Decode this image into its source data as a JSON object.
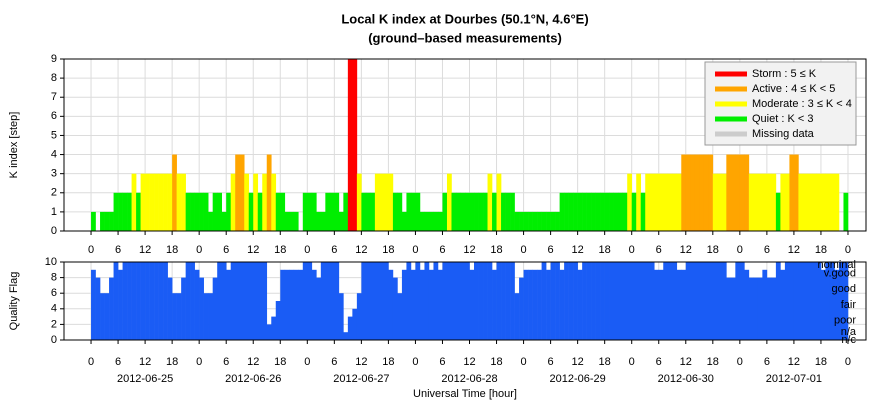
{
  "chart_data": [
    {
      "type": "bar",
      "title": "Local K index at Dourbes (50.1°N, 4.6°E)",
      "subtitle": "(ground–based measurements)",
      "ylabel": "K index [step]",
      "xlim": [
        -6,
        172
      ],
      "ylim": [
        0,
        9
      ],
      "yticks": [
        0,
        1,
        2,
        3,
        4,
        5,
        6,
        7,
        8,
        9
      ],
      "grid": true,
      "xticks": [
        {
          "value": 0,
          "label": "0"
        },
        {
          "value": 6,
          "label": "6"
        },
        {
          "value": 12,
          "label": "12"
        },
        {
          "value": 18,
          "label": "18"
        },
        {
          "value": 24,
          "label": "0"
        },
        {
          "value": 30,
          "label": "6"
        },
        {
          "value": 36,
          "label": "12"
        },
        {
          "value": 42,
          "label": "18"
        },
        {
          "value": 48,
          "label": "0"
        },
        {
          "value": 54,
          "label": "6"
        },
        {
          "value": 60,
          "label": "12"
        },
        {
          "value": 66,
          "label": "18"
        },
        {
          "value": 72,
          "label": "0"
        },
        {
          "value": 78,
          "label": "6"
        },
        {
          "value": 84,
          "label": "12"
        },
        {
          "value": 90,
          "label": "18"
        },
        {
          "value": 96,
          "label": "0"
        },
        {
          "value": 102,
          "label": "6"
        },
        {
          "value": 108,
          "label": "12"
        },
        {
          "value": 114,
          "label": "18"
        },
        {
          "value": 120,
          "label": "0"
        },
        {
          "value": 126,
          "label": "6"
        },
        {
          "value": 132,
          "label": "12"
        },
        {
          "value": 138,
          "label": "18"
        },
        {
          "value": 144,
          "label": "0"
        },
        {
          "value": 150,
          "label": "6"
        },
        {
          "value": 156,
          "label": "12"
        },
        {
          "value": 162,
          "label": "18"
        },
        {
          "value": 168,
          "label": "0"
        }
      ],
      "legend": "upper right",
      "levels": [
        {
          "name": "Storm : 5 ≤ K",
          "color": "#ff0000",
          "min": 5
        },
        {
          "name": "Active : 4 ≤ K < 5",
          "color": "#ffa500",
          "min": 4
        },
        {
          "name": "Moderate : 3 ≤ K < 4",
          "color": "#ffff00",
          "min": 3
        },
        {
          "name": "Quiet : K < 3",
          "color": "#00ee00",
          "min": 0
        },
        {
          "name": "Missing data",
          "color": "#cccccc"
        }
      ],
      "values": [
        1,
        0,
        1,
        1,
        1,
        2,
        2,
        2,
        2,
        3,
        2,
        3,
        3,
        3,
        3,
        3,
        3,
        3,
        4,
        3,
        3,
        2,
        2,
        2,
        2,
        2,
        1,
        2,
        2,
        1,
        2,
        3,
        4,
        4,
        3,
        2,
        3,
        2,
        3,
        4,
        3,
        2,
        2,
        1,
        1,
        1,
        0,
        2,
        2,
        2,
        1,
        1,
        2,
        2,
        2,
        1,
        2,
        9,
        9,
        3,
        2,
        2,
        2,
        3,
        3,
        3,
        3,
        2,
        2,
        1,
        2,
        2,
        2,
        1,
        1,
        1,
        1,
        1,
        2,
        3,
        2,
        2,
        2,
        2,
        2,
        2,
        2,
        2,
        3,
        2,
        3,
        2,
        2,
        2,
        1,
        1,
        1,
        1,
        1,
        1,
        1,
        1,
        1,
        1,
        2,
        2,
        2,
        2,
        2,
        2,
        2,
        2,
        2,
        2,
        2,
        2,
        2,
        2,
        2,
        3,
        2,
        3,
        2,
        3,
        3,
        3,
        3,
        3,
        3,
        3,
        3,
        4,
        4,
        4,
        4,
        4,
        4,
        4,
        3,
        3,
        3,
        4,
        4,
        4,
        4,
        4,
        3,
        3,
        3,
        3,
        3,
        3,
        2,
        3,
        3,
        4,
        4,
        3,
        3,
        3,
        3,
        3,
        3,
        3,
        3,
        3,
        0,
        2
      ]
    },
    {
      "type": "bar",
      "ylabel": "Quality Flag",
      "xlabel": "Universal Time [hour]",
      "color": "#1a5cf5",
      "xlim": [
        -6,
        172
      ],
      "ylim": [
        0,
        10
      ],
      "yticks": [
        0,
        2,
        4,
        6,
        8,
        10
      ],
      "grid": true,
      "xticks": [
        {
          "value": 0,
          "label": "0"
        },
        {
          "value": 6,
          "label": "6"
        },
        {
          "value": 12,
          "label": "12"
        },
        {
          "value": 18,
          "label": "18"
        },
        {
          "value": 24,
          "label": "0"
        },
        {
          "value": 30,
          "label": "6"
        },
        {
          "value": 36,
          "label": "12"
        },
        {
          "value": 42,
          "label": "18"
        },
        {
          "value": 48,
          "label": "0"
        },
        {
          "value": 54,
          "label": "6"
        },
        {
          "value": 60,
          "label": "12"
        },
        {
          "value": 66,
          "label": "18"
        },
        {
          "value": 72,
          "label": "0"
        },
        {
          "value": 78,
          "label": "6"
        },
        {
          "value": 84,
          "label": "12"
        },
        {
          "value": 90,
          "label": "18"
        },
        {
          "value": 96,
          "label": "0"
        },
        {
          "value": 102,
          "label": "6"
        },
        {
          "value": 108,
          "label": "12"
        },
        {
          "value": 114,
          "label": "18"
        },
        {
          "value": 120,
          "label": "0"
        },
        {
          "value": 126,
          "label": "6"
        },
        {
          "value": 132,
          "label": "12"
        },
        {
          "value": 138,
          "label": "18"
        },
        {
          "value": 144,
          "label": "0"
        },
        {
          "value": 150,
          "label": "6"
        },
        {
          "value": 156,
          "label": "12"
        },
        {
          "value": 162,
          "label": "18"
        },
        {
          "value": 168,
          "label": "0"
        }
      ],
      "date_ticks": [
        {
          "value": 12,
          "label": "2012-06-25"
        },
        {
          "value": 36,
          "label": "2012-06-26"
        },
        {
          "value": 60,
          "label": "2012-06-27"
        },
        {
          "value": 84,
          "label": "2012-06-28"
        },
        {
          "value": 108,
          "label": "2012-06-29"
        },
        {
          "value": 132,
          "label": "2012-06-30"
        },
        {
          "value": 156,
          "label": "2012-07-01"
        }
      ],
      "flag_labels": [
        {
          "value": 10,
          "label": "nominal"
        },
        {
          "value": 8.5,
          "label": "v.good"
        },
        {
          "value": 6.5,
          "label": "good"
        },
        {
          "value": 4.5,
          "label": "fair"
        },
        {
          "value": 2.5,
          "label": "poor"
        },
        {
          "value": 1,
          "label": "n/a"
        },
        {
          "value": 0,
          "label": "n/c"
        }
      ],
      "values": [
        9,
        8,
        6,
        6,
        8,
        10,
        9,
        10,
        10,
        10,
        10,
        10,
        10,
        10,
        10,
        10,
        10,
        8,
        6,
        6,
        8,
        10,
        10,
        9,
        8,
        6,
        6,
        8,
        10,
        10,
        9,
        10,
        10,
        10,
        10,
        10,
        10,
        10,
        10,
        2,
        3,
        5,
        9,
        9,
        9,
        9,
        9,
        10,
        10,
        9,
        8,
        10,
        10,
        10,
        10,
        6,
        1,
        3,
        4,
        6,
        10,
        10,
        10,
        10,
        10,
        10,
        9,
        8,
        6,
        9,
        10,
        9,
        10,
        9,
        10,
        9,
        10,
        9,
        10,
        10,
        10,
        10,
        10,
        10,
        9,
        10,
        10,
        10,
        10,
        9,
        10,
        10,
        10,
        10,
        6,
        8,
        9,
        9,
        9,
        9,
        10,
        9,
        10,
        10,
        9,
        10,
        10,
        10,
        9,
        10,
        10,
        10,
        10,
        10,
        10,
        10,
        10,
        10,
        10,
        10,
        10,
        10,
        10,
        10,
        10,
        9,
        9,
        10,
        10,
        10,
        9,
        9,
        10,
        10,
        10,
        10,
        10,
        10,
        10,
        10,
        10,
        8,
        8,
        10,
        10,
        9,
        8,
        8,
        8,
        9,
        8,
        8,
        10,
        9,
        10,
        10,
        10,
        10,
        10,
        10,
        10,
        10,
        9,
        10,
        10,
        9,
        10,
        10
      ]
    }
  ]
}
